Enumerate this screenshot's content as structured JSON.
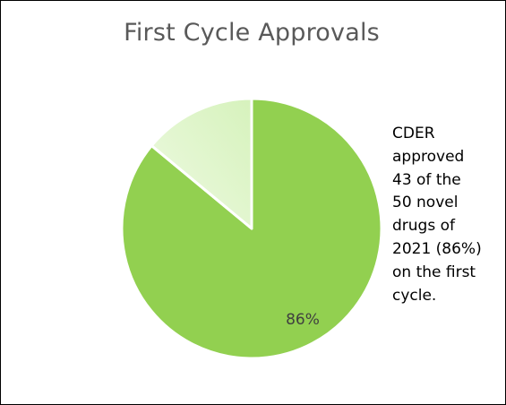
{
  "chart_data": {
    "type": "pie",
    "title": "First Cycle Approvals",
    "slices": [
      {
        "label": "",
        "value": 86,
        "color": "#92d050",
        "data_label": "86%"
      },
      {
        "label": "",
        "value": 14,
        "color": "#d8f4be",
        "data_label": ""
      }
    ],
    "annotation_lines": [
      "CDER",
      "approved",
      "43 of the",
      "50 novel",
      "drugs of",
      "2021 (86%)",
      "on the first",
      "cycle."
    ]
  }
}
